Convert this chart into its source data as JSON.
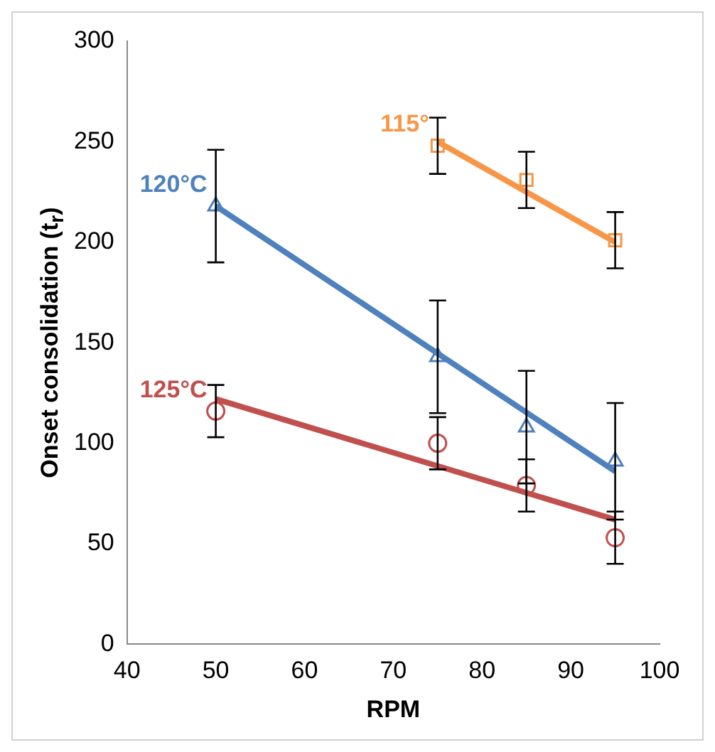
{
  "chart_data": {
    "type": "scatter",
    "xlabel": "RPM",
    "ylabel": "Onset consolidation (t$_{r}$)",
    "xlim": [
      40,
      100
    ],
    "xticks": [
      40,
      50,
      60,
      70,
      80,
      90,
      100
    ],
    "ylim": [
      0,
      300
    ],
    "yticks": [
      0,
      50,
      100,
      150,
      200,
      250,
      300
    ],
    "grid": false,
    "legend": false,
    "series": [
      {
        "name": "115°",
        "color": "#f79646",
        "marker": "square",
        "x": [
          75,
          85,
          95
        ],
        "values": [
          248,
          231,
          201
        ],
        "errors": [
          14,
          14,
          14
        ]
      },
      {
        "name": "120°C",
        "color": "#4f81bd",
        "marker": "triangle",
        "x": [
          50,
          75,
          85,
          95
        ],
        "values": [
          218,
          143,
          108,
          91
        ],
        "errors": [
          28,
          28,
          28,
          29
        ]
      },
      {
        "name": "125°C",
        "color": "#c0504d",
        "marker": "circle",
        "x": [
          50,
          75,
          85,
          95
        ],
        "values": [
          116,
          100,
          79,
          53
        ],
        "errors": [
          13,
          13,
          13,
          13
        ]
      },
      {
        "type": "line",
        "color": "#f79646",
        "marker": "none",
        "x": [
          75,
          95
        ],
        "values": [
          250,
          200
        ]
      },
      {
        "type": "line",
        "color": "#4f81bd",
        "marker": "none",
        "x": [
          50,
          95
        ],
        "values": [
          218,
          86
        ]
      },
      {
        "type": "line",
        "color": "#c0504d",
        "marker": "none",
        "x": [
          50,
          95
        ],
        "values": [
          122,
          62
        ]
      }
    ]
  }
}
